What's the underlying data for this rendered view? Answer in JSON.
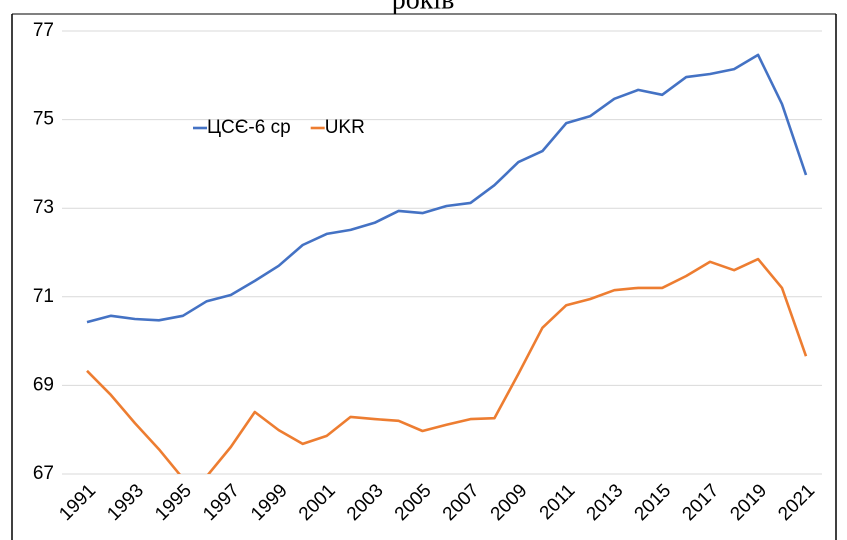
{
  "chart_data": {
    "type": "line",
    "title": "років",
    "categories": [
      "1991",
      null,
      "1993",
      null,
      "1995",
      null,
      "1997",
      null,
      "1999",
      null,
      "2001",
      null,
      "2003",
      null,
      "2005",
      null,
      "2007",
      null,
      "2009",
      null,
      "2011",
      null,
      "2013",
      null,
      "2015",
      null,
      "2017",
      null,
      "2019",
      null,
      "2021"
    ],
    "series": [
      {
        "name": "ЦСЄ-6 ср",
        "color": "#4472c4",
        "values": [
          70.43,
          70.57,
          70.5,
          70.47,
          70.57,
          70.9,
          71.04,
          71.36,
          71.7,
          72.17,
          72.42,
          72.51,
          72.67,
          72.94,
          72.89,
          73.05,
          73.12,
          73.52,
          74.04,
          74.29,
          74.92,
          75.08,
          75.47,
          75.67,
          75.56,
          75.96,
          76.03,
          76.14,
          76.46,
          75.35,
          73.75
        ]
      },
      {
        "name": "UKR",
        "color": "#ed7d31",
        "values": [
          69.33,
          68.78,
          68.15,
          67.56,
          66.9,
          66.95,
          67.61,
          68.4,
          67.99,
          67.68,
          67.86,
          68.29,
          68.24,
          68.2,
          67.97,
          68.11,
          68.24,
          68.26,
          69.26,
          70.3,
          70.81,
          70.95,
          71.15,
          71.2,
          71.2,
          71.47,
          71.79,
          71.6,
          71.85,
          71.2,
          69.66
        ]
      }
    ],
    "ylim": [
      67,
      77
    ],
    "yticks": [
      67,
      69,
      71,
      73,
      75,
      77
    ],
    "grid": true,
    "legend": "top-left"
  }
}
